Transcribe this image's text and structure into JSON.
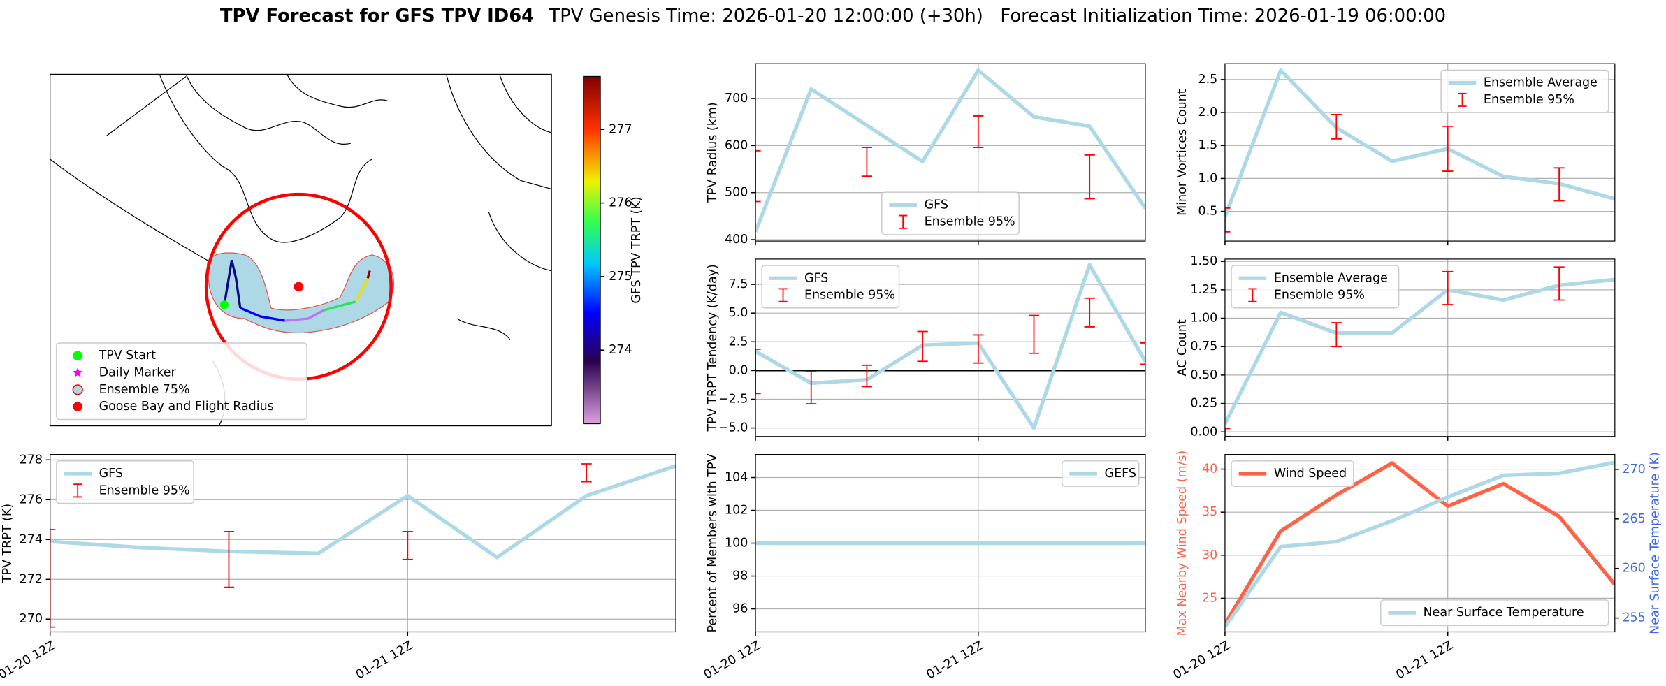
{
  "title": "TPV Forecast for GFS TPV ID64",
  "subtitle": "TPV Genesis Time: 2026-01-20 12:00:00 (+30h)   Forecast Initialization Time: 2026-01-19 06:00:00",
  "chart_data": [
    {
      "type": "map",
      "colorbar": {
        "label": "GFS TPV TRPT (K)",
        "lim": [
          273.0,
          277.72
        ],
        "ticks": [
          274,
          275,
          276,
          277
        ]
      },
      "legend": "lower left",
      "legend_entries": [
        {
          "name": "TPV Start",
          "color": "#00ff00",
          "marker": "circle"
        },
        {
          "name": "Daily Marker",
          "color": "#ff00ff",
          "marker": "star"
        },
        {
          "name": "Ensemble 75%",
          "color": "#add8e6",
          "marker": "circle",
          "edgecolor": "#ff0000"
        },
        {
          "name": "Goose Bay and Flight Radius",
          "color": "#ff0000",
          "marker": "circle"
        }
      ]
    },
    {
      "type": "line",
      "ylabel": "TPV TRPT (K)",
      "x": [
        "01-20 12Z",
        "01-20 18Z",
        "01-21 00Z",
        "01-21 06Z",
        "01-21 12Z",
        "01-21 18Z",
        "01-22 00Z",
        "01-22 06Z"
      ],
      "xlim": [
        "01-20 12Z",
        "01-22 06Z"
      ],
      "xticks": [
        "01-20 12Z",
        "01-21 12Z"
      ],
      "show_xtick_labels": true,
      "ylim": [
        269.36,
        278.27
      ],
      "yticks": [
        270,
        272,
        274,
        276,
        278
      ],
      "grid": true,
      "legend": "upper left",
      "series": [
        {
          "name": "GFS",
          "color": "#add8e6",
          "values": [
            273.9,
            273.6,
            273.4,
            273.3,
            276.2,
            273.1,
            276.2,
            277.7
          ]
        }
      ],
      "error": {
        "name": "Ensemble 95%",
        "color": "#ff0000",
        "x": [
          "01-20 12Z",
          "01-21 00Z",
          "01-21 12Z",
          "01-22 00Z"
        ],
        "lower": [
          269.6,
          271.6,
          273.0,
          276.9
        ],
        "upper": [
          274.5,
          274.4,
          274.4,
          277.8
        ]
      }
    },
    {
      "type": "line",
      "ylabel": "TPV Radius (km)",
      "x": [
        "01-20 12Z",
        "01-20 18Z",
        "01-21 00Z",
        "01-21 06Z",
        "01-21 12Z",
        "01-21 18Z",
        "01-22 00Z",
        "01-22 06Z"
      ],
      "xlim": [
        "01-20 12Z",
        "01-22 06Z"
      ],
      "xticks": [
        "01-20 12Z",
        "01-21 12Z"
      ],
      "show_xtick_labels": false,
      "ylim": [
        397,
        774
      ],
      "yticks": [
        400,
        500,
        600,
        700
      ],
      "grid": true,
      "legend": "lower center",
      "series": [
        {
          "name": "GFS",
          "color": "#add8e6",
          "values": [
            417,
            720,
            643,
            566,
            760,
            661,
            641,
            467
          ]
        }
      ],
      "error": {
        "name": "Ensemble 95%",
        "color": "#ff0000",
        "x": [
          "01-20 12Z",
          "01-21 00Z",
          "01-21 12Z",
          "01-22 00Z"
        ],
        "lower": [
          481,
          535,
          596,
          487
        ],
        "upper": [
          589,
          596,
          663,
          580
        ]
      }
    },
    {
      "type": "line",
      "ylabel": "TPV TRPT Tendency (K/day)",
      "x": [
        "01-20 12Z",
        "01-20 18Z",
        "01-21 00Z",
        "01-21 06Z",
        "01-21 12Z",
        "01-21 18Z",
        "01-22 00Z",
        "01-22 06Z"
      ],
      "xlim": [
        "01-20 12Z",
        "01-22 06Z"
      ],
      "xticks": [
        "01-20 12Z",
        "01-21 12Z"
      ],
      "show_xtick_labels": false,
      "ylim": [
        -5.74,
        9.7
      ],
      "yticks": [
        {
          "value": -5,
          "label": "−5.0"
        },
        {
          "value": -2.5,
          "label": "−2.5"
        },
        {
          "value": 0,
          "label": "0.0"
        },
        2.5,
        {
          "value": 5,
          "label": "5.0"
        },
        7.5
      ],
      "grid": true,
      "legend": "upper left",
      "hline": {
        "value": 0,
        "color": "#000000"
      },
      "series": [
        {
          "name": "GFS",
          "color": "#add8e6",
          "values": [
            1.67,
            -1.1,
            -0.8,
            2.2,
            2.4,
            -5.0,
            9.2,
            0.8
          ]
        }
      ],
      "error": {
        "name": "Ensemble 95%",
        "color": "#ff0000",
        "x": [
          "01-20 12Z",
          "01-20 18Z",
          "01-21 00Z",
          "01-21 06Z",
          "01-21 12Z",
          "01-21 18Z",
          "01-22 00Z",
          "01-22 06Z"
        ],
        "lower": [
          -2.0,
          -2.9,
          -1.4,
          0.8,
          0.65,
          1.5,
          3.8,
          0.55
        ],
        "upper": [
          1.85,
          -0.1,
          0.46,
          3.4,
          3.1,
          4.8,
          6.3,
          2.4
        ]
      }
    },
    {
      "type": "line",
      "ylabel": "Percent of Members with TPV",
      "x": [
        "01-20 12Z",
        "01-20 18Z",
        "01-21 00Z",
        "01-21 06Z",
        "01-21 12Z",
        "01-21 18Z",
        "01-22 00Z",
        "01-22 06Z"
      ],
      "xlim": [
        "01-20 12Z",
        "01-22 06Z"
      ],
      "xticks": [
        "01-20 12Z",
        "01-21 12Z"
      ],
      "show_xtick_labels": true,
      "ylim": [
        94.6,
        105.4
      ],
      "yticks": [
        96,
        98,
        100,
        102,
        104
      ],
      "grid": true,
      "legend": "upper right",
      "series": [
        {
          "name": "GEFS",
          "color": "#add8e6",
          "values": [
            100,
            100,
            100,
            100,
            100,
            100,
            100,
            100
          ]
        }
      ]
    },
    {
      "type": "line",
      "ylabel": "Minor Vortices Count",
      "x": [
        "01-20 12Z",
        "01-20 18Z",
        "01-21 00Z",
        "01-21 06Z",
        "01-21 12Z",
        "01-21 18Z",
        "01-22 00Z",
        "01-22 06Z"
      ],
      "xlim": [
        "01-20 12Z",
        "01-22 06Z"
      ],
      "xticks": [
        "01-20 12Z",
        "01-21 12Z"
      ],
      "show_xtick_labels": false,
      "ylim": [
        0.05,
        2.74
      ],
      "yticks": [
        0.5,
        {
          "value": 1,
          "label": "1.0"
        },
        1.5,
        {
          "value": 2,
          "label": "2.0"
        },
        2.5
      ],
      "grid": true,
      "legend": "upper right",
      "series": [
        {
          "name": "Ensemble Average",
          "color": "#add8e6",
          "values": [
            0.42,
            2.64,
            1.77,
            1.26,
            1.45,
            1.03,
            0.92,
            0.69
          ]
        }
      ],
      "error": {
        "name": "Ensemble 95%",
        "color": "#ff0000",
        "x": [
          "01-20 12Z",
          "01-21 00Z",
          "01-21 12Z",
          "01-22 00Z"
        ],
        "lower": [
          0.19,
          1.6,
          1.11,
          0.66
        ],
        "upper": [
          0.55,
          1.97,
          1.79,
          1.16
        ]
      }
    },
    {
      "type": "line",
      "ylabel": "AC Count",
      "x": [
        "01-20 12Z",
        "01-20 18Z",
        "01-21 00Z",
        "01-21 06Z",
        "01-21 12Z",
        "01-21 18Z",
        "01-22 00Z",
        "01-22 06Z"
      ],
      "xlim": [
        "01-20 12Z",
        "01-22 06Z"
      ],
      "xticks": [
        "01-20 12Z",
        "01-21 12Z"
      ],
      "show_xtick_labels": false,
      "ylim": [
        -0.04,
        1.52
      ],
      "yticks": [
        {
          "value": 0,
          "label": "0.00"
        },
        {
          "value": 0.25,
          "label": "0.25"
        },
        {
          "value": 0.5,
          "label": "0.50"
        },
        {
          "value": 0.75,
          "label": "0.75"
        },
        {
          "value": 1,
          "label": "1.00"
        },
        {
          "value": 1.25,
          "label": "1.25"
        },
        {
          "value": 1.5,
          "label": "1.50"
        }
      ],
      "grid": true,
      "legend": "upper left",
      "series": [
        {
          "name": "Ensemble Average",
          "color": "#add8e6",
          "values": [
            0.07,
            1.05,
            0.87,
            0.87,
            1.25,
            1.16,
            1.29,
            1.34
          ]
        }
      ],
      "error": {
        "name": "Ensemble 95%",
        "color": "#ff0000",
        "x": [
          "01-20 12Z",
          "01-21 00Z",
          "01-21 12Z",
          "01-22 00Z"
        ],
        "lower": [
          -0.04,
          0.75,
          1.12,
          1.16
        ],
        "upper": [
          0.03,
          0.96,
          1.41,
          1.45
        ]
      }
    },
    {
      "type": "line",
      "ylabel": "Max Nearby Wind Speed (m/s)",
      "ylabel_color": "#ff6347",
      "y2label": "Near Surface Temperature (K)",
      "y2label_color": "#4169e1",
      "x": [
        "01-20 12Z",
        "01-20 18Z",
        "01-21 00Z",
        "01-21 06Z",
        "01-21 12Z",
        "01-21 18Z",
        "01-22 00Z",
        "01-22 06Z"
      ],
      "xlim": [
        "01-20 12Z",
        "01-22 06Z"
      ],
      "xticks": [
        "01-20 12Z",
        "01-21 12Z"
      ],
      "show_xtick_labels": true,
      "ylim": [
        21.1,
        41.7
      ],
      "yticks": [
        25,
        30,
        35,
        40
      ],
      "y2lim": [
        253.6,
        271.5
      ],
      "y2ticks": [
        255,
        260,
        265,
        270
      ],
      "grid": true,
      "legend": "upper left",
      "legend2": "lower right",
      "series": [
        {
          "name": "Wind Speed",
          "color": "#ff6347",
          "values": [
            22.0,
            32.8,
            37.0,
            40.7,
            35.7,
            38.3,
            34.5,
            26.6
          ]
        },
        {
          "name": "Near Surface Temperature",
          "color": "#add8e6",
          "axis": "y2",
          "values": [
            254.1,
            262.2,
            262.7,
            264.8,
            267.2,
            269.4,
            269.6,
            270.7
          ]
        }
      ]
    }
  ]
}
